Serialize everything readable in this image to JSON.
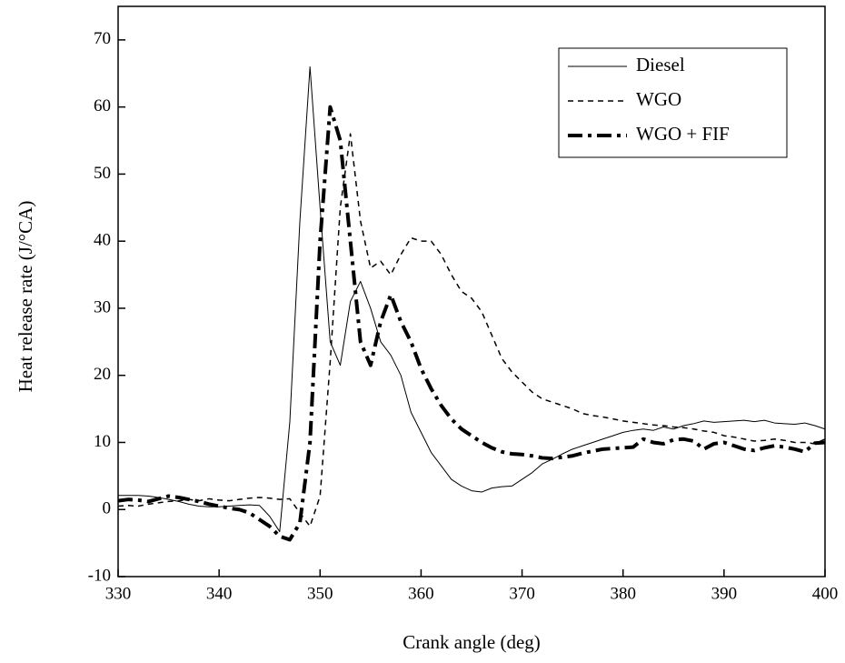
{
  "chart_data": {
    "type": "line",
    "xlabel": "Crank angle (deg)",
    "ylabel": "Heat release rate (J/°CA)",
    "x": [
      330,
      331,
      332,
      333,
      334,
      335,
      336,
      337,
      338,
      339,
      340,
      341,
      342,
      343,
      344,
      345,
      346,
      347,
      348,
      349,
      350,
      351,
      352,
      353,
      354,
      355,
      356,
      357,
      358,
      359,
      360,
      361,
      362,
      363,
      364,
      365,
      366,
      367,
      368,
      369,
      370,
      371,
      372,
      373,
      374,
      375,
      376,
      377,
      378,
      379,
      380,
      381,
      382,
      383,
      384,
      385,
      386,
      387,
      388,
      389,
      390,
      391,
      392,
      393,
      394,
      395,
      396,
      397,
      398,
      399,
      400
    ],
    "series": [
      {
        "name": "Diesel",
        "color": "#000000",
        "style": "solid",
        "values": [
          2.1,
          2.1,
          2.1,
          2.0,
          1.8,
          1.5,
          1.2,
          0.8,
          0.5,
          0.4,
          0.4,
          0.5,
          0.6,
          0.7,
          0.6,
          -1,
          -3.3,
          13,
          43,
          66,
          45,
          25,
          21.5,
          31,
          34,
          30,
          25,
          23,
          20,
          14.5,
          11.5,
          8.5,
          6.5,
          4.5,
          3.5,
          2.8,
          2.6,
          3.2,
          3.4,
          3.5,
          4.5,
          5.5,
          6.8,
          7.5,
          8.3,
          9,
          9.5,
          10,
          10.5,
          11,
          11.5,
          11.8,
          12,
          11.8,
          12.3,
          12,
          12.5,
          12.8,
          13.2,
          13,
          13.1,
          13.2,
          13.3,
          13.1,
          13.3,
          12.9,
          12.8,
          12.7,
          12.9,
          12.5,
          12
        ]
      },
      {
        "name": "WGO",
        "color": "#000000",
        "style": "dashed",
        "values": [
          0.5,
          0.6,
          0.5,
          0.8,
          1,
          1.2,
          1.3,
          1.5,
          1.3,
          1.6,
          1.4,
          1.3,
          1.5,
          1.7,
          1.8,
          1.7,
          1.5,
          1.6,
          -0.5,
          -2.5,
          2,
          22,
          45,
          56,
          43,
          36,
          37,
          35,
          38,
          40.5,
          40,
          40,
          38,
          35,
          32.5,
          31.5,
          29.5,
          26,
          22.5,
          20.5,
          19,
          17.5,
          16.5,
          16,
          15.5,
          15,
          14.3,
          14,
          13.8,
          13.5,
          13.2,
          13,
          12.8,
          12.6,
          12.5,
          12.3,
          12.2,
          12,
          11.7,
          11.5,
          11,
          10.8,
          10.5,
          10.2,
          10.3,
          10.5,
          10.3,
          10,
          10,
          9.8,
          10.5
        ]
      },
      {
        "name": "WGO + FIF",
        "color": "#000000",
        "style": "dashdot",
        "values": [
          1.3,
          1.5,
          1.4,
          1.2,
          1.6,
          2.0,
          1.8,
          1.5,
          1.2,
          0.8,
          0.5,
          0.2,
          0,
          -0.5,
          -1.5,
          -2.5,
          -4,
          -4.5,
          -2,
          10,
          40,
          60,
          55,
          40,
          25,
          21.5,
          28,
          32,
          28,
          25,
          21,
          18,
          15.5,
          13.5,
          12,
          11,
          10,
          9.2,
          8.6,
          8.3,
          8.2,
          8,
          7.7,
          7.6,
          7.8,
          8,
          8.4,
          8.7,
          9,
          9.1,
          9.2,
          9.3,
          10.5,
          10,
          9.8,
          10.4,
          10.5,
          10.2,
          9,
          9.8,
          10,
          9.5,
          9,
          8.8,
          9.2,
          9.5,
          9.3,
          9,
          8.6,
          9.9,
          10
        ]
      }
    ],
    "xlim": [
      330,
      400
    ],
    "ylim": [
      -10,
      75
    ],
    "xticks": [
      330,
      340,
      350,
      360,
      370,
      380,
      390,
      400
    ],
    "yticks": [
      -10,
      0,
      10,
      20,
      30,
      40,
      50,
      60,
      70
    ],
    "legend": "upper right",
    "grid": false
  }
}
